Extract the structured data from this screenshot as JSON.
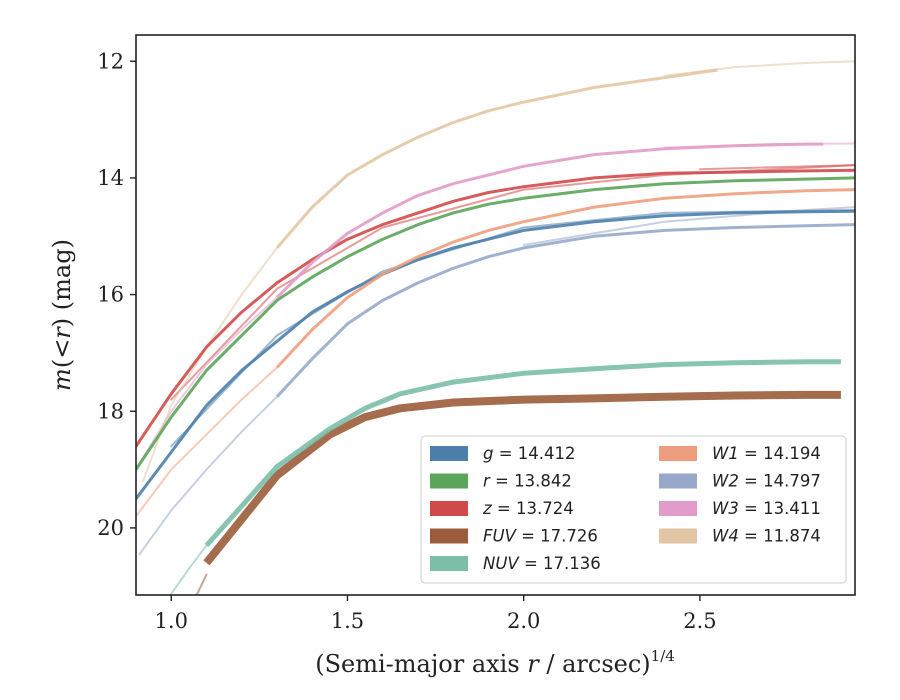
{
  "chart_data": {
    "type": "line",
    "xlabel_main": "(Semi-major axis ",
    "xlabel_var": "r",
    "xlabel_unit": " / arcsec)",
    "xlabel_exp": "1/4",
    "ylabel_m": "m",
    "ylabel_paren": "(<",
    "ylabel_r": "r",
    "ylabel_unit": ") (mag)",
    "xlim": [
      0.9,
      2.94
    ],
    "ylim": [
      21.15,
      11.55
    ],
    "y_inverted": true,
    "x_ticks": [
      {
        "v": 1.0,
        "label": "1.0"
      },
      {
        "v": 1.5,
        "label": "1.5"
      },
      {
        "v": 2.0,
        "label": "2.0"
      },
      {
        "v": 2.5,
        "label": "2.5"
      }
    ],
    "y_ticks": [
      {
        "v": 12,
        "label": "12"
      },
      {
        "v": 14,
        "label": "14"
      },
      {
        "v": 16,
        "label": "16"
      },
      {
        "v": 18,
        "label": "18"
      },
      {
        "v": 20,
        "label": "20"
      }
    ],
    "grid": false,
    "legend_position": "lower-right",
    "series": [
      {
        "name": "g",
        "total": "14.412",
        "color": "#4c7eab",
        "band_width": 3,
        "x": [
          0.9,
          1.0,
          1.1,
          1.2,
          1.3,
          1.4,
          1.5,
          1.6,
          1.7,
          1.8,
          1.9,
          2.0,
          2.2,
          2.4,
          2.6,
          2.8,
          2.94
        ],
        "y": [
          19.5,
          18.7,
          17.9,
          17.3,
          16.8,
          16.3,
          15.95,
          15.65,
          15.4,
          15.2,
          15.05,
          14.9,
          14.75,
          14.65,
          14.6,
          14.58,
          14.57
        ]
      },
      {
        "name": "r",
        "total": "13.842",
        "color": "#5aa55a",
        "band_width": 3,
        "x": [
          0.9,
          1.0,
          1.1,
          1.2,
          1.3,
          1.4,
          1.5,
          1.6,
          1.7,
          1.8,
          1.9,
          2.0,
          2.2,
          2.4,
          2.6,
          2.8,
          2.94
        ],
        "y": [
          19.0,
          18.1,
          17.3,
          16.7,
          16.1,
          15.7,
          15.35,
          15.05,
          14.8,
          14.6,
          14.45,
          14.35,
          14.2,
          14.1,
          14.05,
          14.02,
          14.0
        ]
      },
      {
        "name": "z",
        "total": "13.724",
        "color": "#d14a4a",
        "band_width": 3,
        "x": [
          0.9,
          1.0,
          1.1,
          1.2,
          1.3,
          1.4,
          1.5,
          1.6,
          1.7,
          1.8,
          1.9,
          2.0,
          2.2,
          2.4,
          2.6,
          2.8,
          2.94
        ],
        "y": [
          18.6,
          17.7,
          16.9,
          16.3,
          15.8,
          15.4,
          15.05,
          14.8,
          14.6,
          14.4,
          14.25,
          14.15,
          14.0,
          13.92,
          13.9,
          13.88,
          13.87
        ]
      },
      {
        "name": "FUV",
        "total": "17.726",
        "color": "#9b5c3b",
        "band_width": 8,
        "x": [
          1.1,
          1.3,
          1.45,
          1.55,
          1.65,
          1.8,
          2.0,
          2.2,
          2.4,
          2.6,
          2.8,
          2.9
        ],
        "y": [
          20.6,
          19.1,
          18.4,
          18.1,
          17.95,
          17.85,
          17.8,
          17.78,
          17.75,
          17.73,
          17.72,
          17.72
        ]
      },
      {
        "name": "NUV",
        "total": "17.136",
        "color": "#7bbfa8",
        "band_width": 5,
        "x": [
          1.1,
          1.3,
          1.45,
          1.55,
          1.65,
          1.8,
          2.0,
          2.2,
          2.4,
          2.6,
          2.8,
          2.9
        ],
        "y": [
          20.3,
          18.95,
          18.3,
          17.95,
          17.7,
          17.5,
          17.35,
          17.27,
          17.2,
          17.17,
          17.15,
          17.15
        ]
      },
      {
        "name": "W1",
        "total": "14.194",
        "color": "#ee9e7e",
        "band_width": 3,
        "x": [
          1.3,
          1.4,
          1.5,
          1.6,
          1.7,
          1.8,
          1.9,
          2.0,
          2.2,
          2.4,
          2.6,
          2.8,
          2.94
        ],
        "y": [
          17.25,
          16.6,
          16.05,
          15.65,
          15.35,
          15.1,
          14.9,
          14.75,
          14.5,
          14.35,
          14.27,
          14.22,
          14.2
        ]
      },
      {
        "name": "W2",
        "total": "14.797",
        "color": "#97a8cb",
        "band_width": 3,
        "x": [
          1.3,
          1.4,
          1.5,
          1.6,
          1.7,
          1.8,
          1.9,
          2.0,
          2.2,
          2.4,
          2.6,
          2.8,
          2.94
        ],
        "y": [
          17.75,
          17.1,
          16.5,
          16.1,
          15.8,
          15.55,
          15.35,
          15.2,
          15.0,
          14.9,
          14.85,
          14.82,
          14.8
        ]
      },
      {
        "name": "W3",
        "total": "13.411",
        "color": "#e29cc9",
        "band_width": 3,
        "x": [
          1.3,
          1.4,
          1.5,
          1.6,
          1.7,
          1.8,
          1.9,
          2.0,
          2.2,
          2.4,
          2.6,
          2.8,
          2.85
        ],
        "y": [
          16.05,
          15.45,
          14.95,
          14.6,
          14.3,
          14.1,
          13.95,
          13.8,
          13.6,
          13.5,
          13.45,
          13.42,
          13.42
        ]
      },
      {
        "name": "W4",
        "total": "11.874",
        "color": "#e2c6a4",
        "band_width": 3,
        "x": [
          1.3,
          1.4,
          1.5,
          1.6,
          1.7,
          1.8,
          1.9,
          2.0,
          2.2,
          2.4,
          2.55
        ],
        "y": [
          15.2,
          14.5,
          13.95,
          13.6,
          13.3,
          13.05,
          12.85,
          12.7,
          12.45,
          12.28,
          12.15
        ]
      }
    ],
    "faint_lines": [
      {
        "series": "g",
        "x": [
          1.0,
          1.3,
          1.6,
          2.0,
          2.4,
          2.94
        ],
        "y": [
          18.6,
          16.7,
          15.6,
          14.85,
          14.6,
          14.55
        ]
      },
      {
        "series": "z",
        "x": [
          1.0,
          1.3,
          1.6,
          2.0,
          2.4,
          2.94
        ],
        "y": [
          17.8,
          15.9,
          14.85,
          14.2,
          13.95,
          13.78
        ]
      },
      {
        "series": "W1",
        "x": [
          0.9,
          1.0,
          1.1,
          1.2,
          1.3
        ],
        "y": [
          19.8,
          19.0,
          18.4,
          17.8,
          17.25
        ]
      },
      {
        "series": "W2",
        "x": [
          0.91,
          1.0,
          1.1,
          1.2,
          1.3
        ],
        "y": [
          20.45,
          19.7,
          19.0,
          18.35,
          17.75
        ]
      },
      {
        "series": "W2",
        "x": [
          2.0,
          2.4,
          2.8,
          2.94
        ],
        "y": [
          15.15,
          14.75,
          14.55,
          14.5
        ]
      },
      {
        "series": "W3",
        "x": [
          0.9,
          1.0,
          1.1,
          1.2,
          1.3
        ],
        "y": [
          19.0,
          18.0,
          17.2,
          16.6,
          16.05
        ]
      },
      {
        "series": "W3",
        "x": [
          2.4,
          2.7,
          2.94
        ],
        "y": [
          13.48,
          13.42,
          13.41
        ]
      },
      {
        "series": "W4",
        "x": [
          0.92,
          1.0,
          1.1,
          1.2,
          1.3
        ],
        "y": [
          19.2,
          17.9,
          16.9,
          16.0,
          15.2
        ]
      },
      {
        "series": "W4",
        "x": [
          2.4,
          2.6,
          2.8,
          2.94
        ],
        "y": [
          12.25,
          12.1,
          12.03,
          12.0
        ]
      },
      {
        "series": "NUV",
        "x": [
          0.98,
          1.05,
          1.1
        ],
        "y": [
          21.3,
          20.7,
          20.3
        ]
      },
      {
        "series": "FUV",
        "x": [
          1.06,
          1.1
        ],
        "y": [
          21.3,
          20.8
        ]
      },
      {
        "series": "z",
        "x": [
          2.5,
          2.94
        ],
        "y": [
          13.85,
          13.78
        ]
      }
    ]
  }
}
